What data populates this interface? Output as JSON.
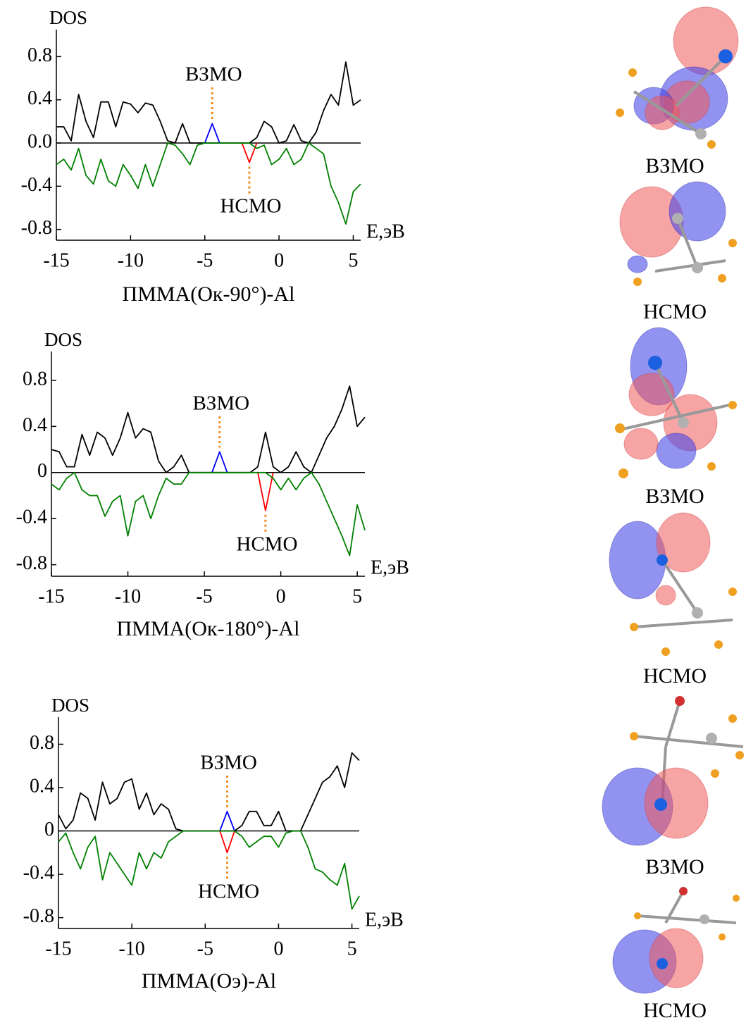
{
  "chart_data": [
    {
      "type": "line",
      "title": "ПММА(Oк-90°)-Al",
      "ylabel": "DOS",
      "xlabel": "E,эВ",
      "x": [
        -15,
        -14.5,
        -14,
        -13.5,
        -13,
        -12.5,
        -12,
        -11.5,
        -11,
        -10.5,
        -10,
        -9.5,
        -9,
        -8.5,
        -8,
        -7.5,
        -7,
        -6.5,
        -6,
        -5.5,
        -5,
        -4.5,
        -4,
        -3.5,
        -3,
        -2.5,
        -2,
        -1.5,
        -1,
        -0.5,
        0,
        0.5,
        1,
        1.5,
        2,
        2.5,
        3,
        3.5,
        4,
        4.5,
        5,
        5.5
      ],
      "xlim": [
        -15,
        5.5
      ],
      "xticks": [
        -15,
        -10,
        -5,
        0,
        5
      ],
      "ylim": [
        -0.9,
        1.05
      ],
      "yticks": [
        0.8,
        0.4,
        {
          "value": 0,
          "label": "0.0"
        },
        -0.4,
        -0.8
      ],
      "annotations": [
        "ВЗМО",
        "НСМО"
      ],
      "series": [
        {
          "color": "#000000",
          "values": [
            0.15,
            0.15,
            0.02,
            0.45,
            0.2,
            0.05,
            0.38,
            0.38,
            0.15,
            0.38,
            0.36,
            0.28,
            0.37,
            0.35,
            0.2,
            0.02,
            0,
            0.18,
            0,
            0,
            0,
            0,
            0,
            0,
            0,
            0,
            0,
            0.05,
            0.2,
            0.15,
            0,
            0.02,
            0.17,
            0.02,
            0,
            0.1,
            0.3,
            0.45,
            0.35,
            0.75,
            0.35,
            0.4
          ]
        },
        {
          "color": "#0000ff",
          "values": [
            null,
            null,
            null,
            null,
            null,
            null,
            null,
            null,
            null,
            null,
            null,
            null,
            null,
            null,
            null,
            null,
            null,
            null,
            null,
            null,
            0,
            0.18,
            0,
            null,
            null,
            null,
            null,
            null,
            null,
            null,
            null,
            null,
            null,
            null,
            null,
            null,
            null,
            null,
            null,
            null,
            null,
            null
          ]
        },
        {
          "color": "#ff0000",
          "values": [
            null,
            null,
            null,
            null,
            null,
            null,
            null,
            null,
            null,
            null,
            null,
            null,
            null,
            null,
            null,
            null,
            null,
            null,
            null,
            null,
            null,
            null,
            null,
            null,
            null,
            0,
            -0.18,
            0,
            null,
            null,
            null,
            null,
            null,
            null,
            null,
            null,
            null,
            null,
            null,
            null,
            null,
            null
          ]
        },
        {
          "color": "#008000",
          "values": [
            -0.2,
            -0.15,
            -0.25,
            -0.05,
            -0.3,
            -0.38,
            -0.15,
            -0.35,
            -0.4,
            -0.2,
            -0.3,
            -0.42,
            -0.2,
            -0.4,
            -0.2,
            0,
            -0.02,
            -0.1,
            -0.2,
            -0.02,
            0,
            0,
            0,
            0,
            0,
            0,
            0,
            -0.05,
            -0.02,
            -0.2,
            -0.15,
            -0.05,
            -0.2,
            -0.15,
            0,
            -0.05,
            -0.1,
            -0.4,
            -0.55,
            -0.75,
            -0.45,
            -0.38
          ]
        }
      ]
    },
    {
      "type": "line",
      "title": "ПММА(Oк-180°)-Al",
      "ylabel": "DOS",
      "xlabel": "E,эВ",
      "x": [
        -15,
        -14.5,
        -14,
        -13.5,
        -13,
        -12.5,
        -12,
        -11.5,
        -11,
        -10.5,
        -10,
        -9.5,
        -9,
        -8.5,
        -8,
        -7.5,
        -7,
        -6.5,
        -6,
        -5.5,
        -5,
        -4.5,
        -4,
        -3.5,
        -3,
        -2.5,
        -2,
        -1.5,
        -1,
        -0.5,
        0,
        0.5,
        1,
        1.5,
        2,
        2.5,
        3,
        3.5,
        4,
        4.5,
        5,
        5.5
      ],
      "xlim": [
        -15,
        5.5
      ],
      "xticks": [
        -15,
        -10,
        -5,
        0,
        5
      ],
      "ylim": [
        -0.9,
        1.05
      ],
      "yticks": [
        0.8,
        0.4,
        0,
        -0.4,
        -0.8
      ],
      "annotations": [
        "ВЗМО",
        "НСМО"
      ],
      "series": [
        {
          "color": "#000000",
          "values": [
            0.2,
            0.18,
            0.05,
            0.05,
            0.33,
            0.15,
            0.35,
            0.3,
            0.15,
            0.3,
            0.52,
            0.3,
            0.38,
            0.35,
            0.1,
            0,
            0.05,
            0.15,
            0,
            0,
            0,
            0,
            0,
            0,
            0,
            0,
            0,
            0.05,
            0.35,
            0.05,
            0,
            0.05,
            0.18,
            0.05,
            0,
            0.15,
            0.3,
            0.4,
            0.55,
            0.75,
            0.4,
            0.48
          ]
        },
        {
          "color": "#0000ff",
          "values": [
            null,
            null,
            null,
            null,
            null,
            null,
            null,
            null,
            null,
            null,
            null,
            null,
            null,
            null,
            null,
            null,
            null,
            null,
            null,
            null,
            null,
            0,
            0.18,
            0,
            null,
            null,
            null,
            null,
            null,
            null,
            null,
            null,
            null,
            null,
            null,
            null,
            null,
            null,
            null,
            null,
            null,
            null
          ]
        },
        {
          "color": "#ff0000",
          "values": [
            null,
            null,
            null,
            null,
            null,
            null,
            null,
            null,
            null,
            null,
            null,
            null,
            null,
            null,
            null,
            null,
            null,
            null,
            null,
            null,
            null,
            null,
            null,
            null,
            null,
            null,
            null,
            0,
            -0.33,
            0,
            null,
            null,
            null,
            null,
            null,
            null,
            null,
            null,
            null,
            null,
            null,
            null
          ]
        },
        {
          "color": "#008000",
          "values": [
            -0.1,
            -0.15,
            -0.05,
            0,
            -0.15,
            -0.2,
            -0.2,
            -0.38,
            -0.25,
            -0.2,
            -0.55,
            -0.25,
            -0.2,
            -0.4,
            -0.2,
            -0.05,
            -0.1,
            -0.1,
            0,
            0,
            0,
            0,
            0,
            0,
            0,
            0,
            0,
            0,
            0,
            -0.05,
            -0.15,
            -0.05,
            -0.15,
            -0.05,
            0,
            -0.1,
            -0.25,
            -0.4,
            -0.55,
            -0.72,
            -0.28,
            -0.5
          ]
        }
      ]
    },
    {
      "type": "line",
      "title": "ПММА(Oэ)-Al",
      "ylabel": "DOS",
      "xlabel": "E,эВ",
      "x": [
        -15,
        -14.5,
        -14,
        -13.5,
        -13,
        -12.5,
        -12,
        -11.5,
        -11,
        -10.5,
        -10,
        -9.5,
        -9,
        -8.5,
        -8,
        -7.5,
        -7,
        -6.5,
        -6,
        -5.5,
        -5,
        -4.5,
        -4,
        -3.5,
        -3,
        -2.5,
        -2,
        -1.5,
        -1,
        -0.5,
        0,
        0.5,
        1,
        1.5,
        2,
        2.5,
        3,
        3.5,
        4,
        4.5,
        5,
        5.5
      ],
      "xlim": [
        -15,
        5.5
      ],
      "xticks": [
        -15,
        -10,
        -5,
        0,
        5
      ],
      "ylim": [
        -0.9,
        1.05
      ],
      "yticks": [
        0.8,
        0.4,
        0,
        -0.4,
        -0.8
      ],
      "annotations": [
        "ВЗМО",
        "НСМО"
      ],
      "series": [
        {
          "color": "#000000",
          "values": [
            0.15,
            0.02,
            0.1,
            0.35,
            0.3,
            0.1,
            0.45,
            0.25,
            0.3,
            0.45,
            0.48,
            0.2,
            0.35,
            0.15,
            0.25,
            0.2,
            0.02,
            0,
            0,
            0,
            0,
            0,
            0,
            0,
            0,
            0.05,
            0.18,
            0.18,
            0.05,
            0.05,
            0.18,
            0,
            0,
            0,
            0.15,
            0.3,
            0.45,
            0.5,
            0.6,
            0.4,
            0.72,
            0.65
          ]
        },
        {
          "color": "#0000ff",
          "values": [
            null,
            null,
            null,
            null,
            null,
            null,
            null,
            null,
            null,
            null,
            null,
            null,
            null,
            null,
            null,
            null,
            null,
            null,
            null,
            null,
            null,
            null,
            0,
            0.18,
            0,
            null,
            null,
            null,
            null,
            null,
            null,
            null,
            null,
            null,
            null,
            null,
            null,
            null,
            null,
            null,
            null,
            null
          ]
        },
        {
          "color": "#ff0000",
          "values": [
            null,
            null,
            null,
            null,
            null,
            null,
            null,
            null,
            null,
            null,
            null,
            null,
            null,
            null,
            null,
            null,
            null,
            null,
            null,
            null,
            null,
            null,
            0,
            -0.2,
            0,
            null,
            null,
            null,
            null,
            null,
            null,
            null,
            null,
            null,
            null,
            null,
            null,
            null,
            null,
            null,
            null,
            null
          ]
        },
        {
          "color": "#008000",
          "values": [
            -0.1,
            -0.02,
            -0.2,
            -0.35,
            -0.15,
            -0.05,
            -0.45,
            -0.2,
            -0.3,
            -0.4,
            -0.5,
            -0.2,
            -0.35,
            -0.2,
            -0.25,
            -0.1,
            -0.05,
            0,
            0,
            0,
            0,
            0,
            0,
            0,
            0,
            -0.05,
            -0.15,
            -0.1,
            -0.05,
            -0.05,
            -0.15,
            -0.02,
            0,
            0,
            -0.15,
            -0.35,
            -0.38,
            -0.45,
            -0.5,
            -0.3,
            -0.72,
            -0.6
          ]
        }
      ]
    }
  ],
  "orbital_labels": [
    "ВЗМО",
    "НСМО",
    "ВЗМО",
    "НСМО",
    "ВЗМО",
    "НСМО"
  ]
}
